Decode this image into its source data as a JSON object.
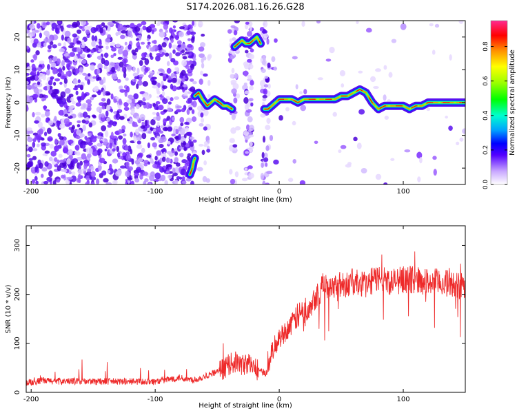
{
  "figure_title": "S174.2026.081.16.26.G28",
  "chart_data": [
    {
      "type": "heatmap",
      "title": "S174.2026.081.16.26.G28",
      "xlabel": "Height of straight line (km)",
      "ylabel": "Frequency (Hz)",
      "xlim": [
        -204,
        150
      ],
      "ylim": [
        -25,
        25
      ],
      "xticks": [
        -200,
        -100,
        0,
        100
      ],
      "yticks": [
        -20,
        -10,
        0,
        10,
        20
      ],
      "colorbar": {
        "label": "Normalized spectral amplitude",
        "range": [
          0.0,
          0.95
        ],
        "ticks": [
          0.0,
          0.2,
          0.4,
          0.6,
          0.8
        ]
      },
      "tracks": [
        {
          "x": [
            -68,
            -65,
            -62,
            -58,
            -55,
            -52,
            -48,
            -45,
            -42,
            -38
          ],
          "y": [
            2,
            3,
            1,
            -1,
            0,
            1,
            0,
            -1,
            -1,
            -2
          ]
        },
        {
          "x": [
            -36,
            -33,
            -30,
            -27,
            -24,
            -21,
            -18,
            -15
          ],
          "y": [
            17,
            18,
            19,
            18,
            18,
            19,
            20,
            18
          ]
        },
        {
          "x": [
            -12,
            -9,
            -6,
            -3,
            0,
            5,
            10,
            15,
            20,
            25,
            30,
            35,
            40,
            45,
            50,
            55,
            60,
            65,
            70,
            75,
            80,
            85,
            90,
            95,
            100,
            105,
            110,
            115,
            120,
            125,
            130,
            135,
            140,
            145,
            150
          ],
          "y": [
            -2,
            -2,
            -1,
            0,
            1,
            1,
            1,
            0,
            1,
            1,
            1,
            1,
            1,
            1,
            2,
            2,
            3,
            4,
            3,
            0,
            -2,
            -1,
            -1,
            -1,
            -1,
            -2,
            -1,
            -1,
            0,
            0,
            0,
            0,
            0,
            0,
            0
          ]
        },
        {
          "x": [
            -72,
            -70,
            -69,
            -68
          ],
          "y": [
            -22,
            -20,
            -18,
            -17
          ]
        }
      ]
    },
    {
      "type": "line",
      "xlabel": "Height of straight line (km)",
      "ylabel": "SNR (10 * v/v)",
      "xlim": [
        -204,
        150
      ],
      "ylim": [
        0,
        340
      ],
      "xticks": [
        -200,
        -100,
        0,
        100
      ],
      "yticks": [
        0,
        100,
        200,
        300
      ],
      "series": [
        {
          "name": "SNR",
          "color": "#ee2a2a",
          "x": [
            -204,
            -190,
            -175,
            -160,
            -145,
            -130,
            -115,
            -100,
            -90,
            -80,
            -70,
            -65,
            -55,
            -45,
            -40,
            -35,
            -30,
            -25,
            -20,
            -15,
            -10,
            -5,
            0,
            5,
            10,
            15,
            20,
            25,
            30,
            35,
            40,
            50,
            60,
            70,
            80,
            90,
            100,
            110,
            120,
            130,
            140,
            150
          ],
          "y": [
            20,
            24,
            22,
            23,
            22,
            22,
            22,
            22,
            26,
            30,
            25,
            28,
            38,
            48,
            58,
            62,
            55,
            60,
            50,
            42,
            40,
            90,
            110,
            125,
            140,
            155,
            165,
            180,
            200,
            215,
            220,
            220,
            225,
            220,
            235,
            225,
            230,
            230,
            225,
            225,
            220,
            220
          ]
        }
      ]
    }
  ]
}
